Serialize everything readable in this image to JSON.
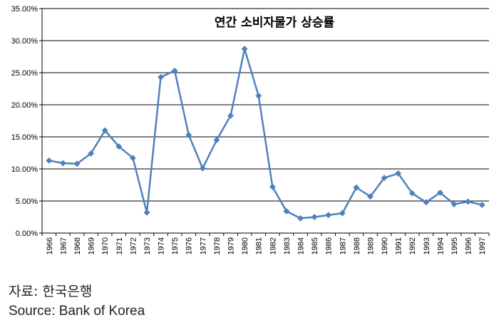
{
  "chart_data": {
    "type": "line",
    "title": "연간 소비자물가 상승률",
    "x": [
      "1966",
      "1967",
      "1968",
      "1969",
      "1970",
      "1971",
      "1972",
      "1973",
      "1974",
      "1975",
      "1976",
      "1977",
      "1978",
      "1979",
      "1980",
      "1981",
      "1982",
      "1983",
      "1984",
      "1985",
      "1986",
      "1987",
      "1988",
      "1989",
      "1990",
      "1991",
      "1992",
      "1993",
      "1994",
      "1995",
      "1996",
      "1997"
    ],
    "series": [
      {
        "values": [
          11.3,
          10.9,
          10.8,
          12.4,
          16.0,
          13.5,
          11.7,
          3.2,
          24.3,
          25.3,
          15.3,
          10.1,
          14.5,
          18.3,
          28.7,
          21.4,
          7.2,
          3.4,
          2.3,
          2.5,
          2.8,
          3.1,
          7.1,
          5.7,
          8.6,
          9.3,
          6.2,
          4.8,
          6.3,
          4.5,
          4.9,
          4.4
        ]
      }
    ],
    "y_ticks": [
      "0.00%",
      "5.00%",
      "10.00%",
      "15.00%",
      "20.00%",
      "25.00%",
      "30.00%",
      "35.00%"
    ],
    "ylim": [
      0,
      35
    ],
    "grid": "horizontal",
    "line_color": "#4F81BD"
  },
  "source": {
    "ko": "자료: 한국은행",
    "en": "Source: Bank of Korea"
  }
}
